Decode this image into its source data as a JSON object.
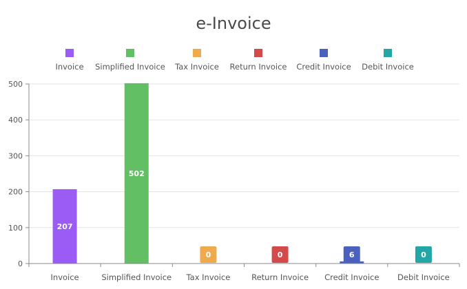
{
  "chart_data": {
    "type": "bar",
    "title": "e-Invoice",
    "categories": [
      "Invoice",
      "Simplified Invoice",
      "Tax Invoice",
      "Return Invoice",
      "Credit Invoice",
      "Debit Invoice"
    ],
    "series": [
      {
        "name": "Invoice",
        "color": "#9b5cf6",
        "values": [
          207,
          0,
          0,
          0,
          0,
          0
        ]
      },
      {
        "name": "Simplified Invoice",
        "color": "#63bf63",
        "values": [
          0,
          502,
          0,
          0,
          0,
          0
        ]
      },
      {
        "name": "Tax Invoice",
        "color": "#eeaa4d",
        "values": [
          0,
          0,
          0,
          0,
          0,
          0
        ]
      },
      {
        "name": "Return Invoice",
        "color": "#d34a4a",
        "values": [
          0,
          0,
          0,
          0,
          0,
          0
        ]
      },
      {
        "name": "Credit Invoice",
        "color": "#4a62be",
        "values": [
          0,
          0,
          0,
          0,
          6,
          0
        ]
      },
      {
        "name": "Debit Invoice",
        "color": "#25a6a6",
        "values": [
          0,
          0,
          0,
          0,
          0,
          0
        ]
      }
    ],
    "data_labels": [
      "207",
      "502",
      "0",
      "0",
      "6",
      "0"
    ],
    "yticks": [
      "0",
      "100",
      "200",
      "300",
      "400",
      "500"
    ],
    "ylim": [
      0,
      500
    ],
    "grid": true,
    "legend": "top"
  }
}
